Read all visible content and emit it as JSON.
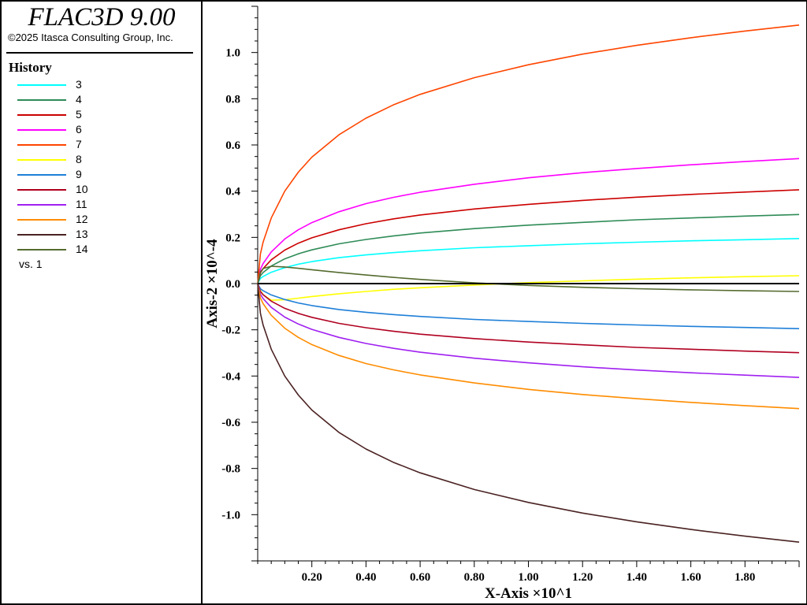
{
  "header": {
    "app_title": "FLAC3D 9.00",
    "copyright": "©2025 Itasca Consulting Group, Inc."
  },
  "legend": {
    "title": "History",
    "vs_label": "vs. 1"
  },
  "chart_data": {
    "type": "line",
    "title": "",
    "xlabel": "X-Axis ×10^1",
    "ylabel": "Axis-2 ×10^-4",
    "xlim": [
      0.0,
      2.0
    ],
    "ylim": [
      -1.2,
      1.2
    ],
    "grid": false,
    "legend_position": "left-panel",
    "x_ticks": [
      0.2,
      0.4,
      0.6,
      0.8,
      1.0,
      1.2,
      1.4,
      1.6,
      1.8
    ],
    "x_tick_labels": [
      "0.20",
      "0.40",
      "0.60",
      "0.80",
      "1.00",
      "1.20",
      "1.40",
      "1.60",
      "1.80"
    ],
    "y_ticks": [
      1.0,
      0.8,
      0.6,
      0.4,
      0.2,
      0.0,
      -0.2,
      -0.4,
      -0.6,
      -0.8,
      -1.0
    ],
    "y_tick_labels": [
      "1.0",
      "0.8",
      "0.6",
      "0.4",
      "0.2",
      "0.0",
      "-0.2",
      "-0.4",
      "-0.6",
      "-0.8",
      "-1.0"
    ],
    "x": [
      0.0,
      0.01,
      0.02,
      0.05,
      0.1,
      0.15,
      0.2,
      0.3,
      0.4,
      0.5,
      0.6,
      0.8,
      1.0,
      1.2,
      1.4,
      1.6,
      1.8,
      2.0
    ],
    "series": [
      {
        "name": "3",
        "color": "#00ffff",
        "values": [
          0.0,
          0.022,
          0.031,
          0.049,
          0.069,
          0.084,
          0.095,
          0.112,
          0.124,
          0.134,
          0.142,
          0.155,
          0.164,
          0.172,
          0.179,
          0.185,
          0.19,
          0.195
        ]
      },
      {
        "name": "4",
        "color": "#2e8b57",
        "values": [
          0.0,
          0.034,
          0.048,
          0.076,
          0.107,
          0.129,
          0.146,
          0.172,
          0.191,
          0.206,
          0.219,
          0.238,
          0.253,
          0.265,
          0.276,
          0.284,
          0.292,
          0.299
        ]
      },
      {
        "name": "5",
        "color": "#cc0000",
        "values": [
          0.0,
          0.046,
          0.065,
          0.103,
          0.145,
          0.175,
          0.198,
          0.233,
          0.259,
          0.28,
          0.297,
          0.323,
          0.343,
          0.36,
          0.374,
          0.386,
          0.396,
          0.406
        ]
      },
      {
        "name": "6",
        "color": "#ff00ff",
        "values": [
          0.0,
          0.062,
          0.087,
          0.137,
          0.193,
          0.233,
          0.264,
          0.311,
          0.346,
          0.373,
          0.395,
          0.43,
          0.458,
          0.48,
          0.498,
          0.514,
          0.528,
          0.541
        ]
      },
      {
        "name": "7",
        "color": "#ff4500",
        "values": [
          0.0,
          0.128,
          0.18,
          0.284,
          0.4,
          0.482,
          0.547,
          0.644,
          0.716,
          0.773,
          0.819,
          0.891,
          0.947,
          0.993,
          1.031,
          1.064,
          1.093,
          1.119
        ]
      },
      {
        "name": "8",
        "color": "#ffff00",
        "values": [
          0.0,
          -0.03,
          -0.048,
          -0.072,
          -0.07,
          -0.063,
          -0.056,
          -0.044,
          -0.034,
          -0.025,
          -0.018,
          -0.006,
          0.004,
          0.012,
          0.019,
          0.025,
          0.03,
          0.034
        ]
      },
      {
        "name": "9",
        "color": "#1e7fd8",
        "values": [
          0.0,
          -0.022,
          -0.031,
          -0.049,
          -0.069,
          -0.084,
          -0.095,
          -0.112,
          -0.124,
          -0.134,
          -0.142,
          -0.155,
          -0.164,
          -0.172,
          -0.179,
          -0.185,
          -0.19,
          -0.195
        ]
      },
      {
        "name": "10",
        "color": "#b00020",
        "values": [
          0.0,
          -0.034,
          -0.048,
          -0.076,
          -0.107,
          -0.129,
          -0.146,
          -0.172,
          -0.191,
          -0.206,
          -0.219,
          -0.238,
          -0.253,
          -0.265,
          -0.276,
          -0.284,
          -0.292,
          -0.299
        ]
      },
      {
        "name": "11",
        "color": "#a020f0",
        "values": [
          0.0,
          -0.046,
          -0.065,
          -0.103,
          -0.145,
          -0.175,
          -0.198,
          -0.233,
          -0.259,
          -0.28,
          -0.297,
          -0.323,
          -0.343,
          -0.36,
          -0.374,
          -0.386,
          -0.396,
          -0.406
        ]
      },
      {
        "name": "12",
        "color": "#ff8c00",
        "values": [
          0.0,
          -0.062,
          -0.087,
          -0.137,
          -0.193,
          -0.233,
          -0.264,
          -0.311,
          -0.346,
          -0.373,
          -0.395,
          -0.43,
          -0.458,
          -0.48,
          -0.498,
          -0.514,
          -0.528,
          -0.541
        ]
      },
      {
        "name": "13",
        "color": "#4b2222",
        "values": [
          0.0,
          -0.128,
          -0.18,
          -0.284,
          -0.4,
          -0.482,
          -0.547,
          -0.644,
          -0.716,
          -0.773,
          -0.819,
          -0.891,
          -0.947,
          -0.993,
          -1.031,
          -1.064,
          -1.093,
          -1.119
        ]
      },
      {
        "name": "14",
        "color": "#556b2f",
        "values": [
          0.0,
          0.05,
          0.065,
          0.075,
          0.072,
          0.066,
          0.06,
          0.048,
          0.037,
          0.027,
          0.018,
          0.003,
          -0.008,
          -0.016,
          -0.022,
          -0.027,
          -0.031,
          -0.034
        ]
      }
    ]
  }
}
